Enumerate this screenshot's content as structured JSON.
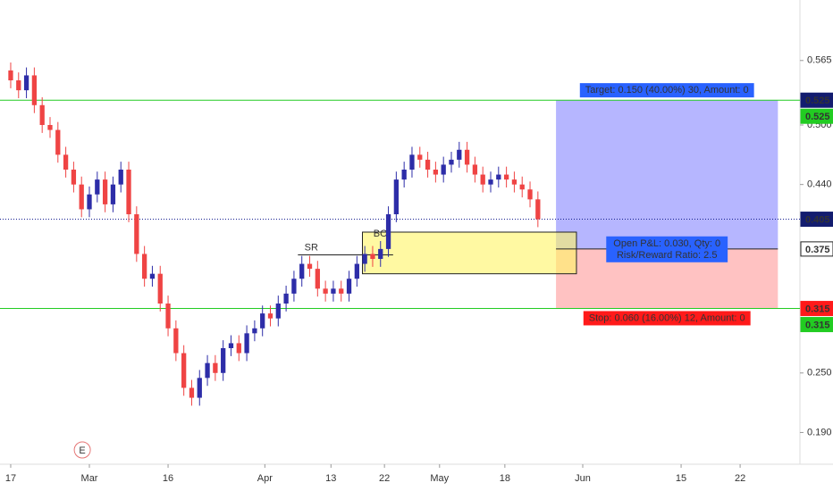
{
  "chart_data": {
    "type": "candlestick",
    "up_color": "#2d2da8",
    "down_color": "#ef4444",
    "ylim": [
      0.158,
      0.626
    ],
    "yticks": [
      0.565,
      {
        "value": 0.5,
        "label": "0.500"
      },
      {
        "value": 0.44,
        "label": "0.440"
      },
      {
        "value": 0.25,
        "label": "0.250"
      },
      {
        "value": 0.19,
        "label": "0.190"
      }
    ],
    "xlim": [
      -1.36,
      100.3
    ],
    "xticks": [
      {
        "value": 0,
        "label": "17"
      },
      {
        "value": 10,
        "label": "Mar"
      },
      {
        "value": 20,
        "label": "16"
      },
      {
        "value": 32.3,
        "label": "Apr"
      },
      {
        "value": 40.7,
        "label": "13"
      },
      {
        "value": 47.5,
        "label": "22"
      },
      {
        "value": 54.5,
        "label": "May"
      },
      {
        "value": 62.8,
        "label": "18"
      },
      {
        "value": 72.7,
        "label": "Jun"
      },
      {
        "value": 85.2,
        "label": "15"
      },
      {
        "value": 92.7,
        "label": "22"
      }
    ],
    "candles": [
      [
        0.555,
        0.563,
        0.537,
        0.545
      ],
      [
        0.545,
        0.553,
        0.527,
        0.535
      ],
      [
        0.535,
        0.558,
        0.527,
        0.55
      ],
      [
        0.55,
        0.558,
        0.512,
        0.52
      ],
      [
        0.52,
        0.528,
        0.492,
        0.5
      ],
      [
        0.5,
        0.508,
        0.487,
        0.495
      ],
      [
        0.495,
        0.503,
        0.462,
        0.47
      ],
      [
        0.47,
        0.478,
        0.447,
        0.455
      ],
      [
        0.455,
        0.463,
        0.432,
        0.44
      ],
      [
        0.44,
        0.448,
        0.407,
        0.415
      ],
      [
        0.415,
        0.438,
        0.407,
        0.43
      ],
      [
        0.43,
        0.453,
        0.422,
        0.445
      ],
      [
        0.445,
        0.453,
        0.412,
        0.42
      ],
      [
        0.42,
        0.448,
        0.412,
        0.44
      ],
      [
        0.44,
        0.463,
        0.432,
        0.455
      ],
      [
        0.455,
        0.463,
        0.402,
        0.41
      ],
      [
        0.41,
        0.418,
        0.362,
        0.37
      ],
      [
        0.37,
        0.378,
        0.337,
        0.345
      ],
      [
        0.345,
        0.358,
        0.337,
        0.35
      ],
      [
        0.35,
        0.358,
        0.312,
        0.32
      ],
      [
        0.32,
        0.328,
        0.287,
        0.295
      ],
      [
        0.295,
        0.303,
        0.262,
        0.27
      ],
      [
        0.27,
        0.278,
        0.227,
        0.235
      ],
      [
        0.235,
        0.243,
        0.217,
        0.225
      ],
      [
        0.225,
        0.253,
        0.217,
        0.245
      ],
      [
        0.245,
        0.268,
        0.237,
        0.26
      ],
      [
        0.26,
        0.268,
        0.242,
        0.25
      ],
      [
        0.25,
        0.283,
        0.242,
        0.275
      ],
      [
        0.275,
        0.288,
        0.267,
        0.28
      ],
      [
        0.28,
        0.288,
        0.262,
        0.27
      ],
      [
        0.27,
        0.298,
        0.262,
        0.29
      ],
      [
        0.29,
        0.303,
        0.282,
        0.295
      ],
      [
        0.295,
        0.318,
        0.287,
        0.31
      ],
      [
        0.31,
        0.318,
        0.297,
        0.305
      ],
      [
        0.305,
        0.328,
        0.297,
        0.32
      ],
      [
        0.32,
        0.338,
        0.312,
        0.33
      ],
      [
        0.33,
        0.353,
        0.322,
        0.345
      ],
      [
        0.345,
        0.368,
        0.337,
        0.36
      ],
      [
        0.36,
        0.368,
        0.347,
        0.355
      ],
      [
        0.355,
        0.363,
        0.327,
        0.335
      ],
      [
        0.335,
        0.343,
        0.322,
        0.33
      ],
      [
        0.33,
        0.343,
        0.322,
        0.335
      ],
      [
        0.335,
        0.343,
        0.322,
        0.33
      ],
      [
        0.33,
        0.353,
        0.322,
        0.345
      ],
      [
        0.345,
        0.368,
        0.337,
        0.36
      ],
      [
        0.36,
        0.378,
        0.352,
        0.37
      ],
      [
        0.37,
        0.378,
        0.357,
        0.365
      ],
      [
        0.365,
        0.383,
        0.357,
        0.375
      ],
      [
        0.375,
        0.418,
        0.367,
        0.41
      ],
      [
        0.41,
        0.453,
        0.402,
        0.445
      ],
      [
        0.445,
        0.463,
        0.437,
        0.455
      ],
      [
        0.455,
        0.478,
        0.447,
        0.47
      ],
      [
        0.47,
        0.478,
        0.457,
        0.465
      ],
      [
        0.465,
        0.473,
        0.447,
        0.455
      ],
      [
        0.455,
        0.463,
        0.442,
        0.45
      ],
      [
        0.45,
        0.468,
        0.442,
        0.46
      ],
      [
        0.46,
        0.473,
        0.452,
        0.465
      ],
      [
        0.465,
        0.483,
        0.457,
        0.475
      ],
      [
        0.475,
        0.483,
        0.452,
        0.46
      ],
      [
        0.46,
        0.468,
        0.442,
        0.45
      ],
      [
        0.45,
        0.458,
        0.432,
        0.44
      ],
      [
        0.44,
        0.453,
        0.432,
        0.445
      ],
      [
        0.445,
        0.458,
        0.437,
        0.45
      ],
      [
        0.45,
        0.458,
        0.437,
        0.445
      ],
      [
        0.445,
        0.453,
        0.432,
        0.44
      ],
      [
        0.44,
        0.448,
        0.427,
        0.435
      ],
      [
        0.435,
        0.443,
        0.417,
        0.425
      ],
      [
        0.425,
        0.433,
        0.397,
        0.405
      ]
    ],
    "target_line": {
      "value": 0.525,
      "color": "#22cc22"
    },
    "stop_line": {
      "value": 0.315,
      "color": "#22cc22"
    },
    "last_price": {
      "value": 0.405,
      "color": "#131c8f"
    },
    "position": {
      "x": [
        69.3,
        97.5
      ],
      "entry": 0.375,
      "target": 0.525,
      "stop": 0.315,
      "target_label": "Target: 0.150 (40.00%) 30, Amount: 0",
      "pnl_label": "Open P&L: 0.030, Qty: 0",
      "rr_label": "Risk/Reward Ratio: 2.5",
      "stop_label": "Stop: 0.060 (16.00%) 12, Amount: 0"
    },
    "zone": {
      "x": [
        44.7,
        71.9
      ],
      "y": [
        0.35,
        0.392
      ]
    },
    "sr": {
      "label": "SR",
      "value": 0.369,
      "x": [
        36.5,
        48.6
      ]
    },
    "bo": {
      "label": "BO",
      "value": 0.39,
      "x": 47
    },
    "event": {
      "label": "E",
      "x": 9.1
    }
  }
}
